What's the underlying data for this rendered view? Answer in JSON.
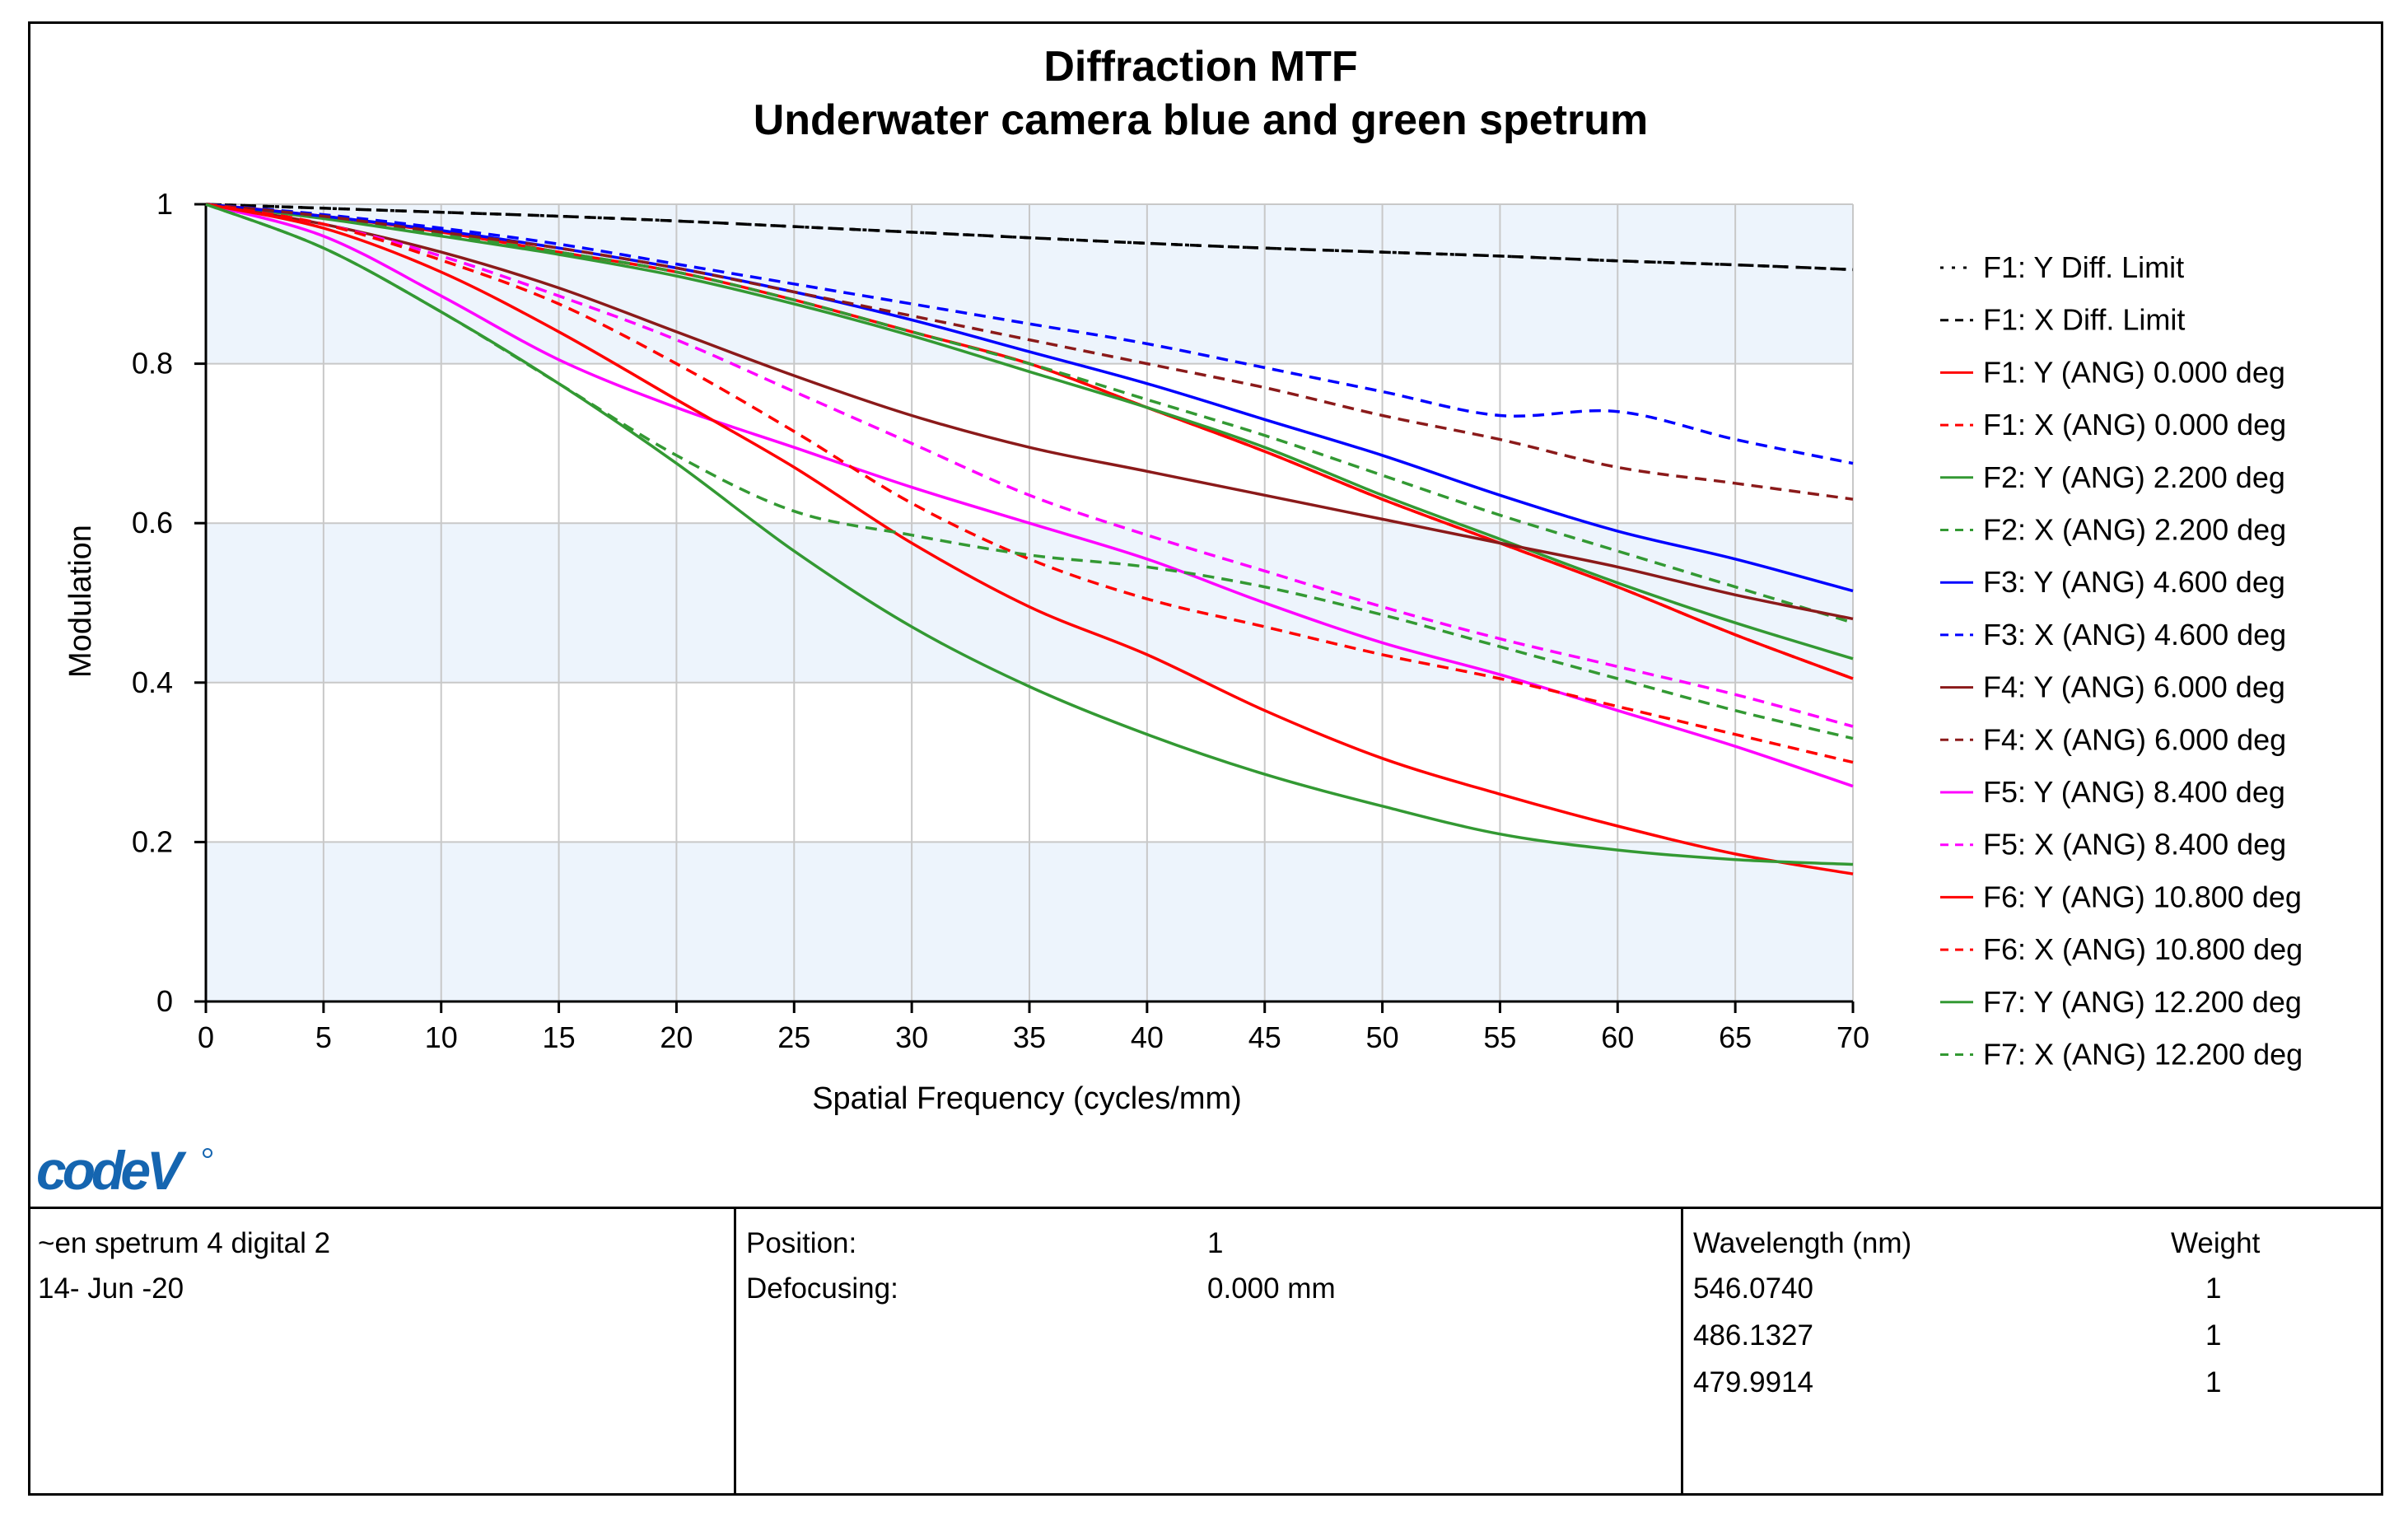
{
  "chart_data": {
    "type": "line",
    "title": "Diffraction MTF",
    "subtitle": "Underwater camera blue and green spetrum",
    "xlabel": "Spatial Frequency (cycles/mm)",
    "ylabel": "Modulation",
    "xlim": [
      0,
      70
    ],
    "ylim": [
      0,
      1
    ],
    "xticks": [
      0,
      5,
      10,
      15,
      20,
      25,
      30,
      35,
      40,
      45,
      50,
      55,
      60,
      65,
      70
    ],
    "yticks": [
      0,
      0.2,
      0.4,
      0.6,
      0.8,
      1
    ],
    "ytick_labels": [
      "0",
      "0.2",
      "0.4",
      "0.6",
      "0.8",
      "1"
    ],
    "grid": true,
    "legend_position": "right",
    "x": [
      0,
      5,
      10,
      15,
      20,
      25,
      30,
      35,
      40,
      45,
      50,
      55,
      60,
      65,
      70
    ],
    "series": [
      {
        "name": "F1: Y Diff. Limit",
        "color": "#000000",
        "dash": "dot",
        "values": [
          1.0,
          0.995,
          0.99,
          0.985,
          0.979,
          0.972,
          0.965,
          0.958,
          0.951,
          0.945,
          0.94,
          0.935,
          0.929,
          0.924,
          0.918
        ]
      },
      {
        "name": "F1: X Diff. Limit",
        "color": "#000000",
        "dash": "dash",
        "values": [
          1.0,
          0.995,
          0.99,
          0.985,
          0.979,
          0.972,
          0.965,
          0.958,
          0.951,
          0.945,
          0.94,
          0.935,
          0.929,
          0.924,
          0.918
        ]
      },
      {
        "name": "F1: Y (ANG) 0.000 deg",
        "color": "#ff0000",
        "dash": "solid",
        "values": [
          1.0,
          0.985,
          0.965,
          0.94,
          0.915,
          0.88,
          0.84,
          0.8,
          0.745,
          0.69,
          0.63,
          0.575,
          0.52,
          0.46,
          0.405
        ]
      },
      {
        "name": "F1: X (ANG) 0.000 deg",
        "color": "#ff0000",
        "dash": "dash",
        "values": [
          1.0,
          0.985,
          0.965,
          0.94,
          0.915,
          0.88,
          0.84,
          0.8,
          0.745,
          0.69,
          0.63,
          0.575,
          0.52,
          0.46,
          0.405
        ]
      },
      {
        "name": "F2: Y (ANG) 2.200 deg",
        "color": "#339933",
        "dash": "solid",
        "values": [
          1.0,
          0.982,
          0.96,
          0.937,
          0.91,
          0.875,
          0.835,
          0.79,
          0.745,
          0.695,
          0.635,
          0.58,
          0.525,
          0.475,
          0.43
        ]
      },
      {
        "name": "F2: X (ANG) 2.200 deg",
        "color": "#339933",
        "dash": "dash",
        "values": [
          1.0,
          0.983,
          0.962,
          0.94,
          0.915,
          0.88,
          0.84,
          0.8,
          0.755,
          0.71,
          0.66,
          0.61,
          0.565,
          0.52,
          0.475
        ]
      },
      {
        "name": "F3: Y (ANG) 4.600 deg",
        "color": "#0000ff",
        "dash": "solid",
        "values": [
          1.0,
          0.985,
          0.967,
          0.945,
          0.92,
          0.89,
          0.855,
          0.815,
          0.775,
          0.73,
          0.685,
          0.635,
          0.59,
          0.555,
          0.515
        ]
      },
      {
        "name": "F3: X (ANG) 4.600 deg",
        "color": "#0000ff",
        "dash": "dash",
        "values": [
          1.0,
          0.987,
          0.97,
          0.95,
          0.925,
          0.9,
          0.875,
          0.85,
          0.825,
          0.795,
          0.765,
          0.735,
          0.74,
          0.705,
          0.675
        ]
      },
      {
        "name": "F4: Y (ANG) 6.000 deg",
        "color": "#8b1a1a",
        "dash": "solid",
        "values": [
          1.0,
          0.975,
          0.94,
          0.895,
          0.84,
          0.785,
          0.735,
          0.695,
          0.665,
          0.635,
          0.605,
          0.575,
          0.545,
          0.51,
          0.48
        ]
      },
      {
        "name": "F4: X (ANG) 6.000 deg",
        "color": "#8b1a1a",
        "dash": "dash",
        "values": [
          1.0,
          0.985,
          0.965,
          0.945,
          0.92,
          0.89,
          0.86,
          0.83,
          0.8,
          0.77,
          0.735,
          0.705,
          0.67,
          0.65,
          0.63
        ]
      },
      {
        "name": "F5: Y (ANG) 8.400 deg",
        "color": "#ff00ff",
        "dash": "solid",
        "values": [
          1.0,
          0.96,
          0.885,
          0.805,
          0.745,
          0.695,
          0.645,
          0.6,
          0.555,
          0.5,
          0.45,
          0.41,
          0.365,
          0.32,
          0.27
        ]
      },
      {
        "name": "F5: X (ANG) 8.400 deg",
        "color": "#ff00ff",
        "dash": "dash",
        "values": [
          1.0,
          0.975,
          0.935,
          0.885,
          0.83,
          0.765,
          0.7,
          0.635,
          0.585,
          0.54,
          0.495,
          0.455,
          0.42,
          0.385,
          0.345
        ]
      },
      {
        "name": "F6: Y (ANG) 10.800 deg",
        "color": "#ff0000",
        "dash": "solid",
        "values": [
          1.0,
          0.97,
          0.915,
          0.84,
          0.755,
          0.67,
          0.575,
          0.495,
          0.435,
          0.365,
          0.305,
          0.26,
          0.22,
          0.185,
          0.16
        ]
      },
      {
        "name": "F6: X (ANG) 10.800 deg",
        "color": "#ff0000",
        "dash": "dash",
        "values": [
          1.0,
          0.975,
          0.93,
          0.875,
          0.8,
          0.715,
          0.625,
          0.555,
          0.505,
          0.47,
          0.435,
          0.405,
          0.37,
          0.335,
          0.3
        ]
      },
      {
        "name": "F7: Y (ANG) 12.200 deg",
        "color": "#339933",
        "dash": "solid",
        "values": [
          1.0,
          0.945,
          0.865,
          0.775,
          0.675,
          0.565,
          0.47,
          0.395,
          0.335,
          0.285,
          0.245,
          0.21,
          0.19,
          0.178,
          0.172
        ]
      },
      {
        "name": "F7: X (ANG) 12.200 deg",
        "color": "#339933",
        "dash": "dash",
        "values": [
          1.0,
          0.945,
          0.865,
          0.775,
          0.685,
          0.615,
          0.585,
          0.56,
          0.545,
          0.52,
          0.485,
          0.445,
          0.405,
          0.365,
          0.33
        ]
      }
    ]
  },
  "logo": {
    "text": "codeV",
    "color": "#1565b0"
  },
  "footer": {
    "lens_name": "~en spetrum 4 digital 2",
    "date": "14- Jun -20",
    "position_label": "Position:",
    "position_value": "1",
    "defocus_label": "Defocusing:",
    "defocus_value": "0.000 mm",
    "wavelength_header": "Wavelength (nm)",
    "weight_header": "Weight",
    "wavelengths": [
      {
        "value": "546.0740",
        "weight": "1"
      },
      {
        "value": "486.1327",
        "weight": "1"
      },
      {
        "value": "479.9914",
        "weight": "1"
      }
    ]
  },
  "colors": {
    "plot_band": "#edf4fc",
    "grid": "#c8c8c8",
    "logo_blue": "#1565b0"
  }
}
